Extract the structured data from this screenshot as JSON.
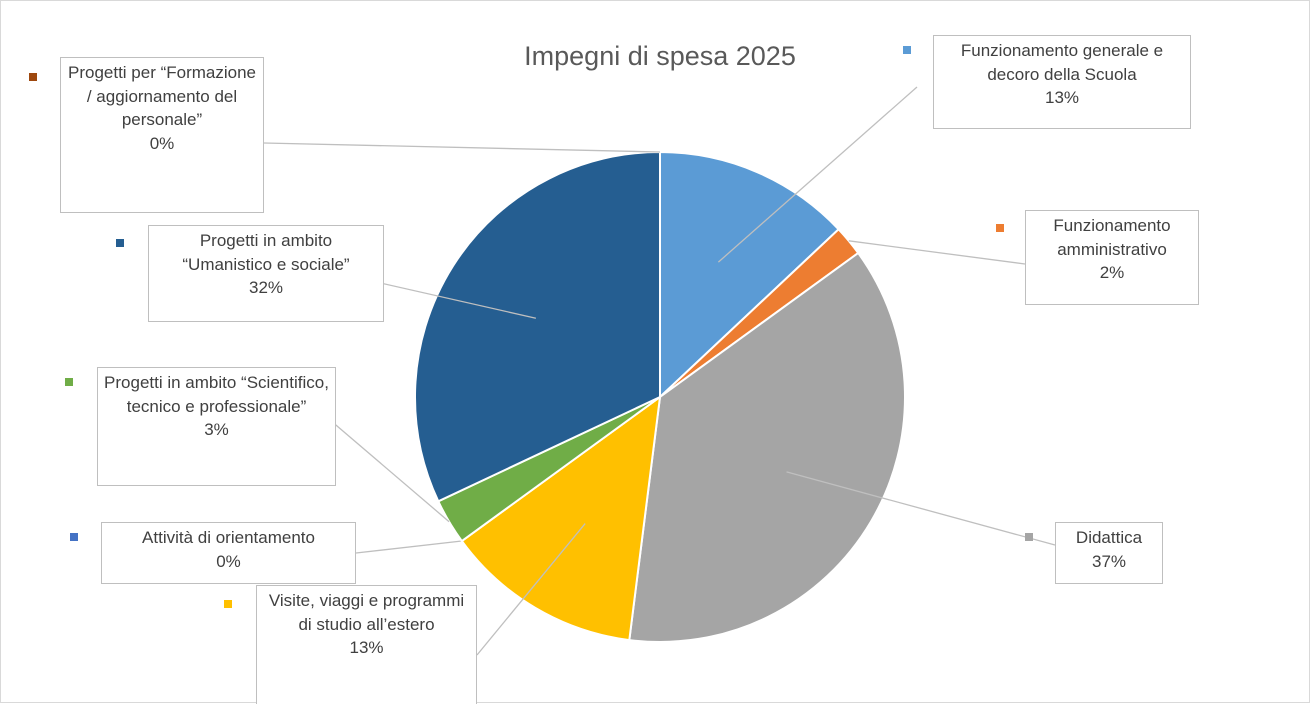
{
  "chart_data": {
    "type": "pie",
    "title": "Impegni di spesa 2025",
    "categories": [
      "Funzionamento generale e decoro della Scuola",
      "Funzionamento amministrativo",
      "Didattica",
      "Visite, viaggi e programmi di studio all’estero",
      "Attività di orientamento",
      "Progetti in ambito “Scientifico, tecnico e professionale”",
      "Progetti in ambito “Umanistico e sociale”",
      "Progetti per “Formazione / aggiornamento del personale”"
    ],
    "values": [
      13,
      2,
      37,
      13,
      0,
      3,
      32,
      0
    ],
    "value_labels": [
      "13%",
      "2%",
      "37%",
      "13%",
      "0%",
      "3%",
      "32%",
      "0%"
    ],
    "colors": [
      "#5b9bd5",
      "#ed7d31",
      "#a5a5a5",
      "#ffc000",
      "#4472c4",
      "#70ad47",
      "#255e91",
      "#9e480e"
    ]
  }
}
